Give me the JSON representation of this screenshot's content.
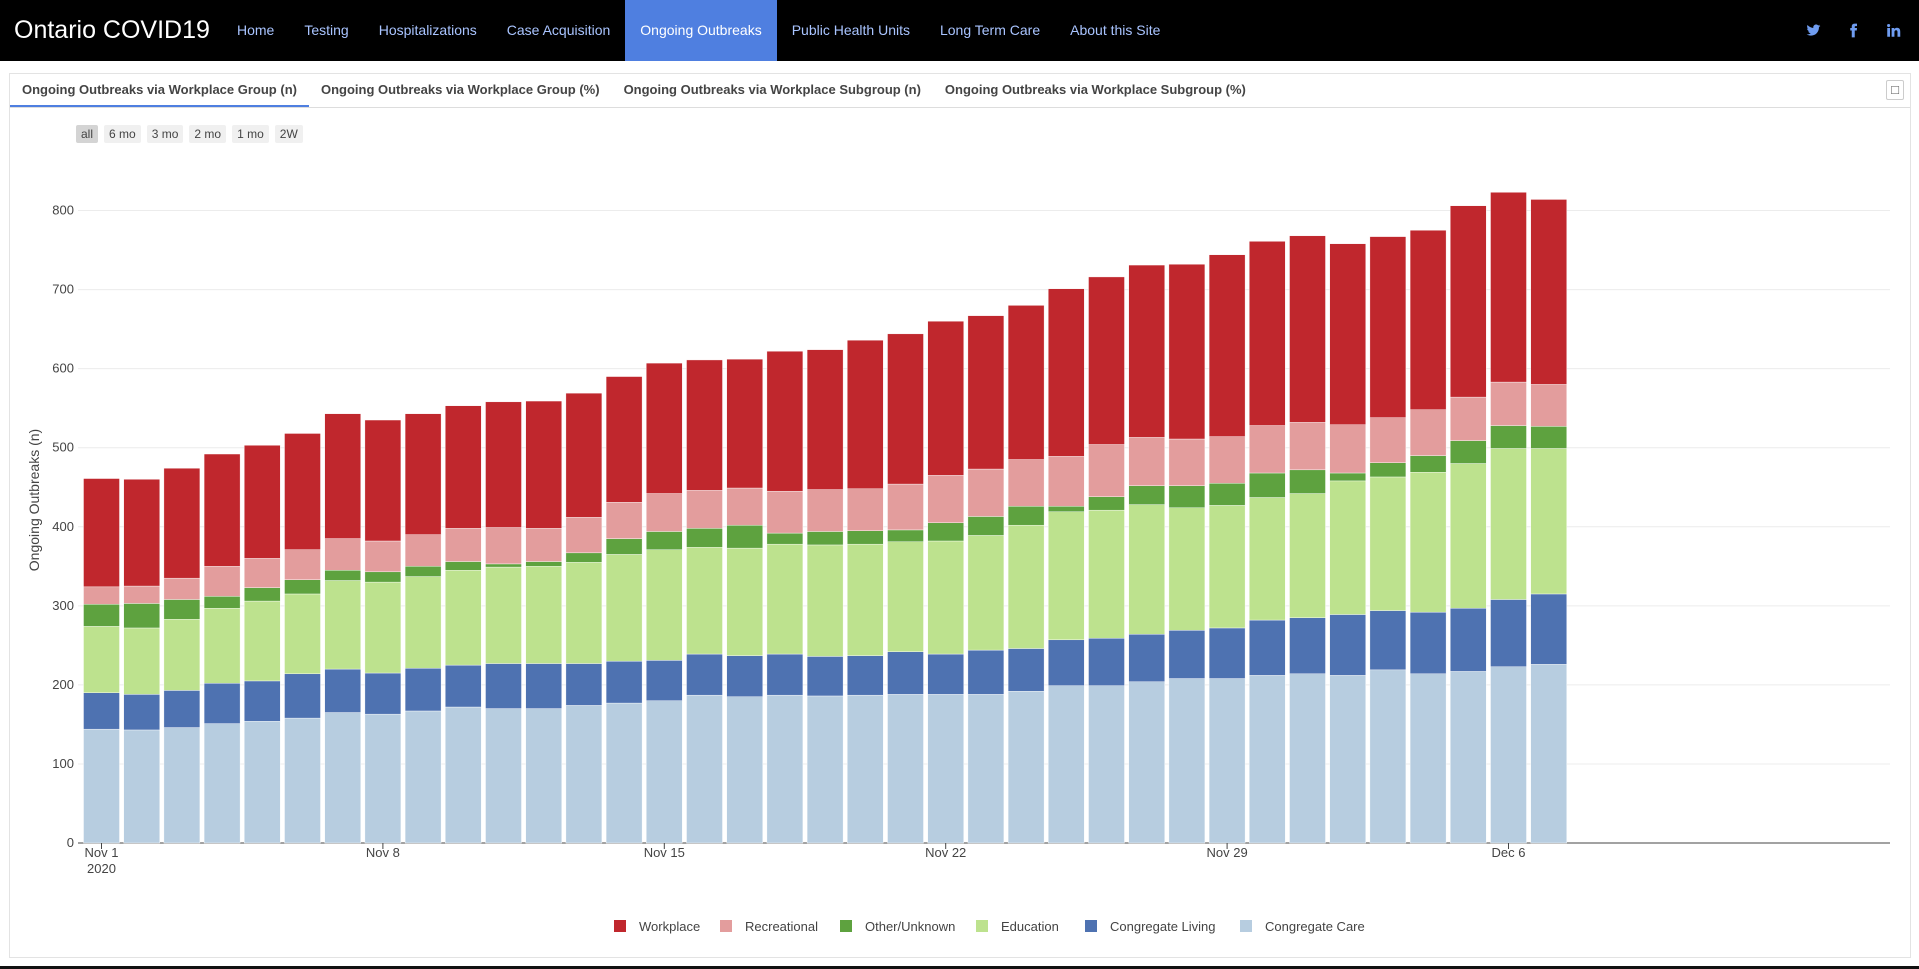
{
  "navbar": {
    "brand": "Ontario COVID19",
    "items": [
      "Home",
      "Testing",
      "Hospitalizations",
      "Case Acquisition",
      "Ongoing Outbreaks",
      "Public Health Units",
      "Long Term Care",
      "About this Site"
    ],
    "active": "Ongoing Outbreaks",
    "social": [
      "twitter-icon",
      "facebook-icon",
      "linkedin-icon"
    ],
    "colors": {
      "background": "#000000",
      "link": "#a9c4ff",
      "active_bg": "#4f7fe0"
    }
  },
  "tabs": {
    "items": [
      "Ongoing Outbreaks via Workplace Group (n)",
      "Ongoing Outbreaks via Workplace Group (%)",
      "Ongoing Outbreaks via Workplace Subgroup (n)",
      "Ongoing Outbreaks via Workplace Subgroup (%)"
    ],
    "active": 0,
    "collapse_symbol": "□"
  },
  "range_buttons": {
    "items": [
      "all",
      "6 mo",
      "3 mo",
      "2 mo",
      "1 mo",
      "2W"
    ],
    "active": "all"
  },
  "chart_data": {
    "type": "bar",
    "stacked": true,
    "title": "",
    "ylabel": "Ongoing Outbreaks (n)",
    "xlabel": "",
    "ylim": [
      0,
      840
    ],
    "yticks": [
      0,
      100,
      200,
      300,
      400,
      500,
      600,
      700,
      800
    ],
    "grid": true,
    "legend_position": "bottom-center",
    "x_tick_labels": [
      {
        "index": 0,
        "label": "Nov 1",
        "sublabel": "2020"
      },
      {
        "index": 7,
        "label": "Nov 8"
      },
      {
        "index": 14,
        "label": "Nov 15"
      },
      {
        "index": 21,
        "label": "Nov 22"
      },
      {
        "index": 28,
        "label": "Nov 29"
      },
      {
        "index": 35,
        "label": "Dec 6"
      }
    ],
    "categories": [
      "2020-11-01",
      "2020-11-02",
      "2020-11-03",
      "2020-11-04",
      "2020-11-05",
      "2020-11-06",
      "2020-11-07",
      "2020-11-08",
      "2020-11-09",
      "2020-11-10",
      "2020-11-11",
      "2020-11-12",
      "2020-11-13",
      "2020-11-14",
      "2020-11-15",
      "2020-11-16",
      "2020-11-17",
      "2020-11-18",
      "2020-11-19",
      "2020-11-20",
      "2020-11-21",
      "2020-11-22",
      "2020-11-23",
      "2020-11-24",
      "2020-11-25",
      "2020-11-26",
      "2020-11-27",
      "2020-11-28",
      "2020-11-29",
      "2020-11-30",
      "2020-12-01",
      "2020-12-02",
      "2020-12-03",
      "2020-12-04",
      "2020-12-05",
      "2020-12-06",
      "2020-12-07"
    ],
    "series": [
      {
        "name": "Congregate Care",
        "color": "#b7cde0",
        "values": [
          144,
          143,
          146,
          151,
          154,
          158,
          165,
          163,
          167,
          172,
          170,
          170,
          174,
          177,
          180,
          187,
          185,
          187,
          186,
          187,
          188,
          188,
          188,
          192,
          199,
          199,
          204,
          208,
          208,
          212,
          214,
          212,
          219,
          214,
          217,
          223,
          226
        ]
      },
      {
        "name": "Congregate Living",
        "color": "#4e72b1",
        "values": [
          46,
          45,
          47,
          51,
          51,
          56,
          55,
          52,
          54,
          53,
          57,
          57,
          53,
          53,
          51,
          52,
          52,
          52,
          50,
          50,
          54,
          51,
          56,
          54,
          58,
          60,
          60,
          61,
          64,
          70,
          71,
          77,
          75,
          78,
          80,
          85,
          89
        ]
      },
      {
        "name": "Education",
        "color": "#bde28e",
        "values": [
          84,
          84,
          90,
          95,
          101,
          101,
          112,
          115,
          116,
          120,
          122,
          123,
          128,
          135,
          140,
          135,
          136,
          139,
          141,
          141,
          139,
          143,
          145,
          156,
          162,
          162,
          164,
          155,
          155,
          155,
          157,
          169,
          169,
          177,
          183,
          191,
          184
        ]
      },
      {
        "name": "Other/Unknown",
        "color": "#5ea23f",
        "values": [
          28,
          31,
          25,
          15,
          17,
          18,
          13,
          13,
          13,
          11,
          4,
          6,
          12,
          20,
          23,
          24,
          29,
          14,
          17,
          17,
          15,
          23,
          24,
          24,
          7,
          17,
          24,
          28,
          28,
          31,
          30,
          10,
          18,
          21,
          29,
          29,
          28
        ]
      },
      {
        "name": "Recreational",
        "color": "#e39d9d",
        "values": [
          22,
          22,
          27,
          38,
          37,
          38,
          40,
          39,
          40,
          42,
          46,
          42,
          45,
          46,
          48,
          48,
          47,
          53,
          53,
          53,
          58,
          60,
          60,
          59,
          63,
          66,
          61,
          59,
          59,
          60,
          60,
          61,
          57,
          58,
          55,
          55,
          53
        ]
      },
      {
        "name": "Workplace",
        "color": "#c0272d",
        "values": [
          137,
          135,
          139,
          142,
          143,
          147,
          158,
          153,
          153,
          155,
          159,
          161,
          157,
          159,
          165,
          165,
          163,
          177,
          177,
          188,
          190,
          195,
          194,
          195,
          212,
          212,
          218,
          221,
          230,
          233,
          236,
          229,
          229,
          227,
          242,
          240,
          234
        ]
      }
    ]
  }
}
